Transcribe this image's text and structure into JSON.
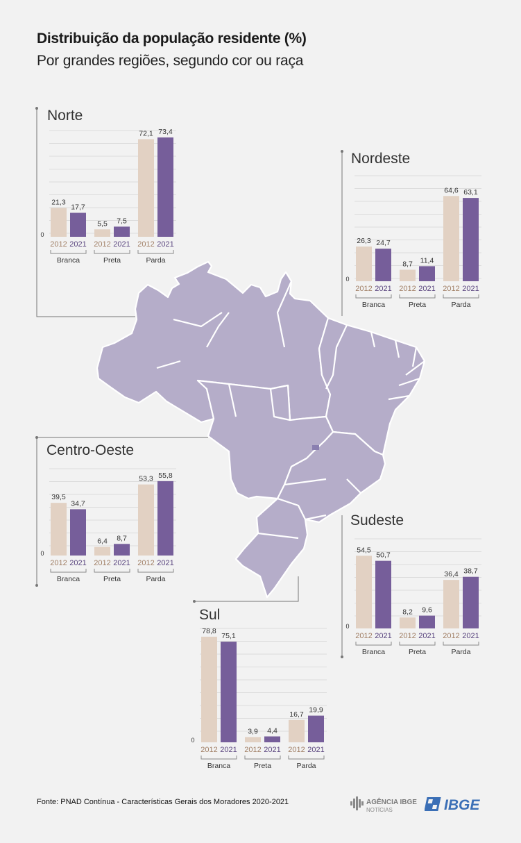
{
  "title": "Distribuição da população residente (%)",
  "subtitle": "Por grandes regiões, segundo cor ou raça",
  "source": "Fonte: PNAD Contínua - Características Gerais dos Moradores 2020-2021",
  "logos": {
    "agencia_top": "AGÊNCIA IBGE",
    "agencia_bottom": "NOTÍCIAS",
    "ibge": "IBGE"
  },
  "colors": {
    "y2012": "#e2d1c3",
    "y2021": "#765e9a",
    "y2012_text": "#a07e64",
    "y2021_text": "#59447e",
    "map_fill": "#b5adc9",
    "map_stroke": "#ffffff",
    "grid": "#dcdcdc",
    "background": "#f2f2f2"
  },
  "chart_data": [
    {
      "type": "bar",
      "title": "Norte",
      "categories": [
        "Branca",
        "Preta",
        "Parda"
      ],
      "x_sublabels": [
        "2012",
        "2021"
      ],
      "y_tick_labels": [
        "0"
      ],
      "series": [
        {
          "name": "2012",
          "values": [
            21.3,
            5.5,
            72.1
          ]
        },
        {
          "name": "2021",
          "values": [
            17.7,
            7.5,
            73.4
          ]
        }
      ],
      "value_labels": {
        "2012": [
          "21,3",
          "5,5",
          "72,1"
        ],
        "2021": [
          "17,7",
          "7,5",
          "73,4"
        ]
      }
    },
    {
      "type": "bar",
      "title": "Nordeste",
      "categories": [
        "Branca",
        "Preta",
        "Parda"
      ],
      "x_sublabels": [
        "2012",
        "2021"
      ],
      "y_tick_labels": [
        "0"
      ],
      "series": [
        {
          "name": "2012",
          "values": [
            26.3,
            8.7,
            64.6
          ]
        },
        {
          "name": "2021",
          "values": [
            24.7,
            11.4,
            63.1
          ]
        }
      ],
      "value_labels": {
        "2012": [
          "26,3",
          "8,7",
          "64,6"
        ],
        "2021": [
          "24,7",
          "11,4",
          "63,1"
        ]
      }
    },
    {
      "type": "bar",
      "title": "Centro-Oeste",
      "categories": [
        "Branca",
        "Preta",
        "Parda"
      ],
      "x_sublabels": [
        "2012",
        "2021"
      ],
      "y_tick_labels": [
        "0"
      ],
      "series": [
        {
          "name": "2012",
          "values": [
            39.5,
            6.4,
            53.3
          ]
        },
        {
          "name": "2021",
          "values": [
            34.7,
            8.7,
            55.8
          ]
        }
      ],
      "value_labels": {
        "2012": [
          "39,5",
          "6,4",
          "53,3"
        ],
        "2021": [
          "34,7",
          "8,7",
          "55,8"
        ]
      }
    },
    {
      "type": "bar",
      "title": "Sudeste",
      "categories": [
        "Branca",
        "Preta",
        "Parda"
      ],
      "x_sublabels": [
        "2012",
        "2021"
      ],
      "y_tick_labels": [
        "0"
      ],
      "series": [
        {
          "name": "2012",
          "values": [
            54.5,
            8.2,
            36.4
          ]
        },
        {
          "name": "2021",
          "values": [
            50.7,
            9.6,
            38.7
          ]
        }
      ],
      "value_labels": {
        "2012": [
          "54,5",
          "8,2",
          "36,4"
        ],
        "2021": [
          "50,7",
          "9,6",
          "38,7"
        ]
      }
    },
    {
      "type": "bar",
      "title": "Sul",
      "categories": [
        "Branca",
        "Preta",
        "Parda"
      ],
      "x_sublabels": [
        "2012",
        "2021"
      ],
      "y_tick_labels": [
        "0"
      ],
      "series": [
        {
          "name": "2012",
          "values": [
            78.8,
            3.9,
            16.7
          ]
        },
        {
          "name": "2021",
          "values": [
            75.1,
            4.4,
            19.9
          ]
        }
      ],
      "value_labels": {
        "2012": [
          "78,8",
          "3,9",
          "16,7"
        ],
        "2021": [
          "75,1",
          "4,4",
          "19,9"
        ]
      }
    }
  ]
}
